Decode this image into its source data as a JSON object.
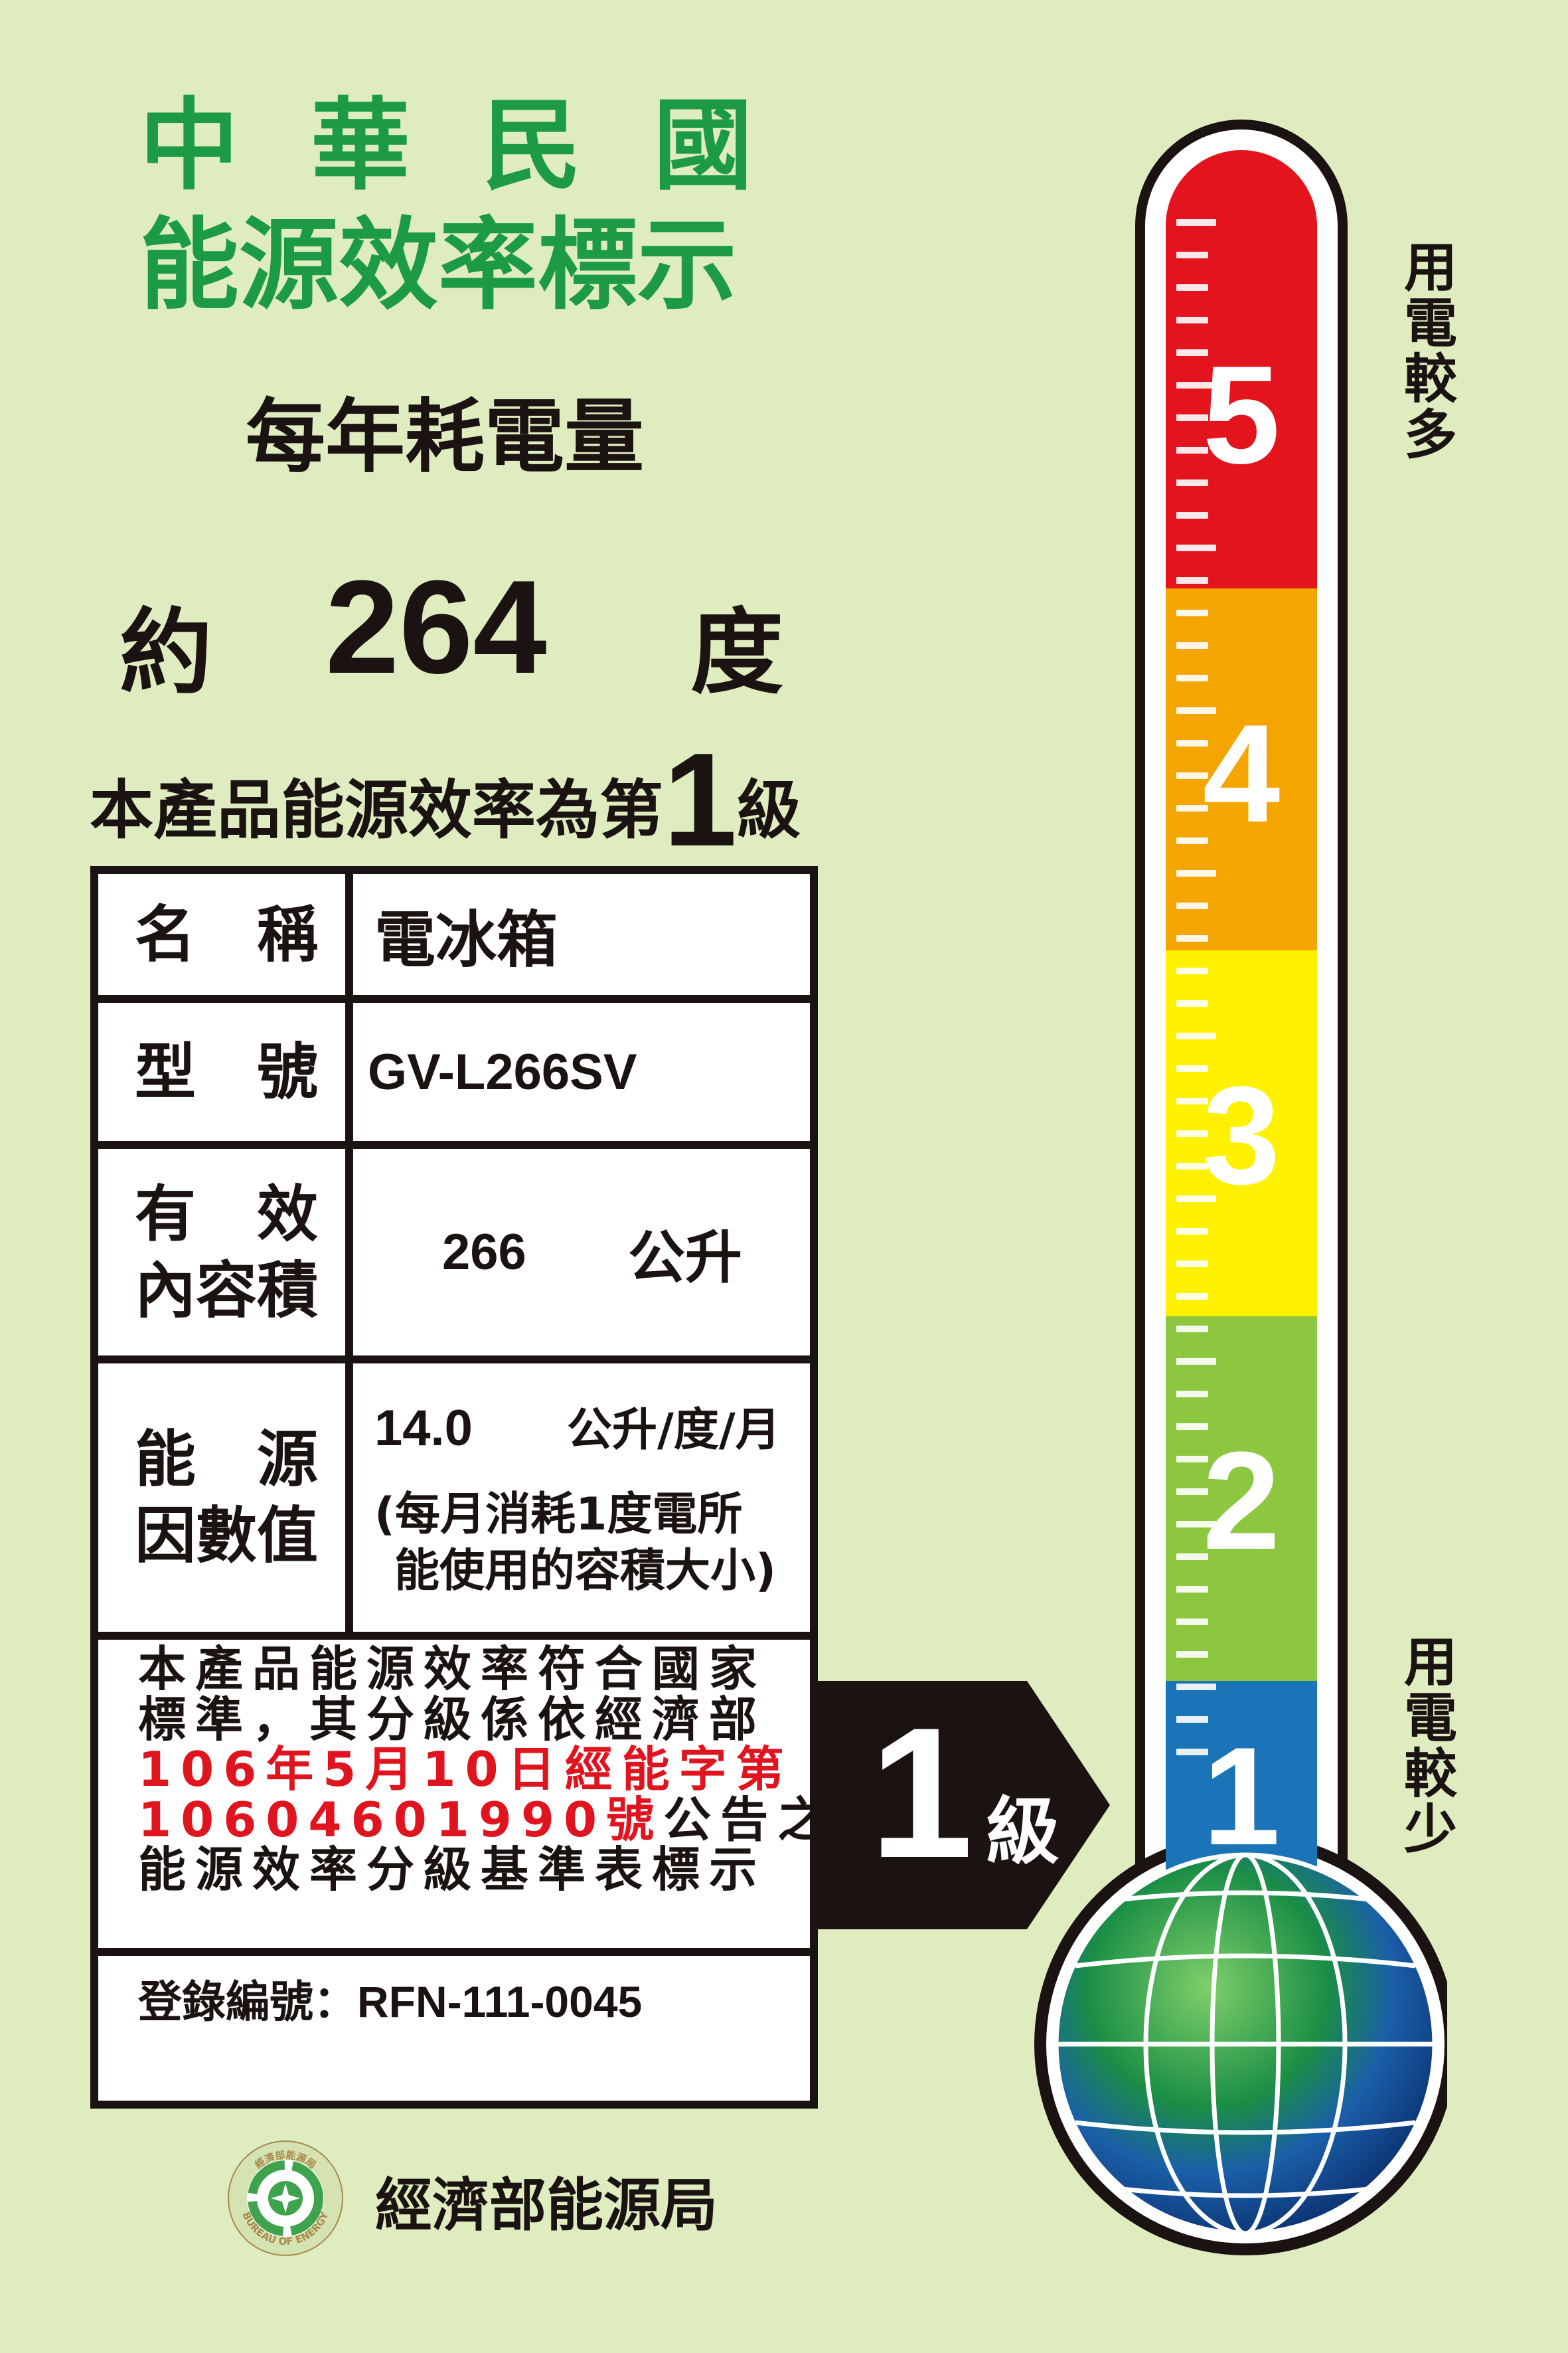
{
  "header": {
    "country": "中華民國",
    "title": "能源效率標示",
    "subtitle": "每年耗電量"
  },
  "consumption": {
    "prefix": "約",
    "value": "264",
    "unit": "度"
  },
  "grade_statement": {
    "text": "本產品能源效率為第",
    "grade": "1",
    "suffix": "級"
  },
  "table": {
    "name_label": "名　稱",
    "name_value": "電冰箱",
    "model_label": "型　號",
    "model_value": "GV-L266SV",
    "volume_label_1": "有　效",
    "volume_label_2": "內容積",
    "volume_value": "266",
    "volume_unit": "公升",
    "factor_label_1": "能　源",
    "factor_label_2": "因數值",
    "factor_value": "14.0",
    "factor_unit": "公升/度/月",
    "factor_note_1": "(每月消耗1度電所",
    "factor_note_2": "能使用的容積大小)",
    "notice_line1": "本產品能源效率符合國家",
    "notice_line2": "標準，其分級係依經濟部",
    "notice_red1": "106年5月10日經能字第",
    "notice_red2": "1060460199​0號",
    "notice_line4": "公告之",
    "notice_line5": "能源效率分級基準表標示",
    "reg_label": "登錄編號：",
    "reg_value": "RFN-111-0045"
  },
  "arrow": {
    "grade": "1",
    "suffix": "級"
  },
  "scale": {
    "levels": [
      "5",
      "4",
      "3",
      "2",
      "1"
    ],
    "colors": [
      "#e3141e",
      "#f5a500",
      "#fff100",
      "#8dc63f",
      "#1b74b8"
    ],
    "high_label": "用電較多",
    "low_label": "用電較少",
    "current_level": 1
  },
  "footer": {
    "logo_text_top": "經濟部能源局",
    "logo_text_bottom": "BUREAU OF ENERGY",
    "agency": "經濟部能源局"
  }
}
